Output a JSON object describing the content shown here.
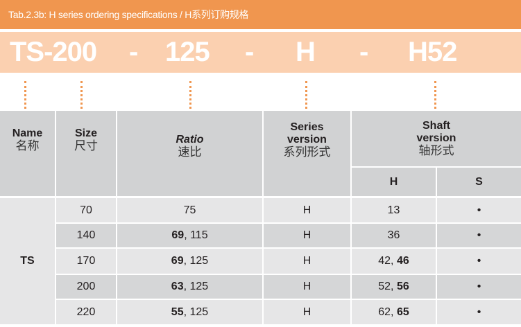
{
  "title": "Tab.2.3b: H series ordering specifications / H系列订购规格",
  "code": {
    "name_size": "TS-200",
    "sep1": "-",
    "ratio": "125",
    "sep2": "-",
    "series": "H",
    "sep3": "-",
    "shaft": "H52"
  },
  "colors": {
    "header_bar": "#F0964F",
    "code_band": "#FBD0B0",
    "dots": "#F0964F"
  },
  "headers": {
    "name": {
      "en": "Name",
      "cn": "名称"
    },
    "size": {
      "en": "Size",
      "cn": "尺寸"
    },
    "ratio": {
      "en": "Ratio",
      "cn": "速比"
    },
    "series": {
      "en1": "Series",
      "en2": "version",
      "cn": "系列形式"
    },
    "shaft": {
      "en1": "Shaft",
      "en2": "version",
      "cn": "轴形式",
      "h": "H",
      "s": "S"
    }
  },
  "name_value": "TS",
  "rows": [
    {
      "size": "70",
      "ratio_bold": "",
      "ratio_rest": "75",
      "series": "H",
      "h_rest": "13",
      "h_bold": "",
      "s": "•"
    },
    {
      "size": "140",
      "ratio_bold": "69",
      "ratio_rest": ", 115",
      "series": "H",
      "h_rest": "36",
      "h_bold": "",
      "s": "•"
    },
    {
      "size": "170",
      "ratio_bold": "69",
      "ratio_rest": ", 125",
      "series": "H",
      "h_rest": "42, ",
      "h_bold": "46",
      "s": "•"
    },
    {
      "size": "200",
      "ratio_bold": "63",
      "ratio_rest": ", 125",
      "series": "H",
      "h_rest": "52, ",
      "h_bold": "56",
      "s": "•"
    },
    {
      "size": "220",
      "ratio_bold": "55",
      "ratio_rest": ", 125",
      "series": "H",
      "h_rest": "62, ",
      "h_bold": "65",
      "s": "•"
    }
  ]
}
